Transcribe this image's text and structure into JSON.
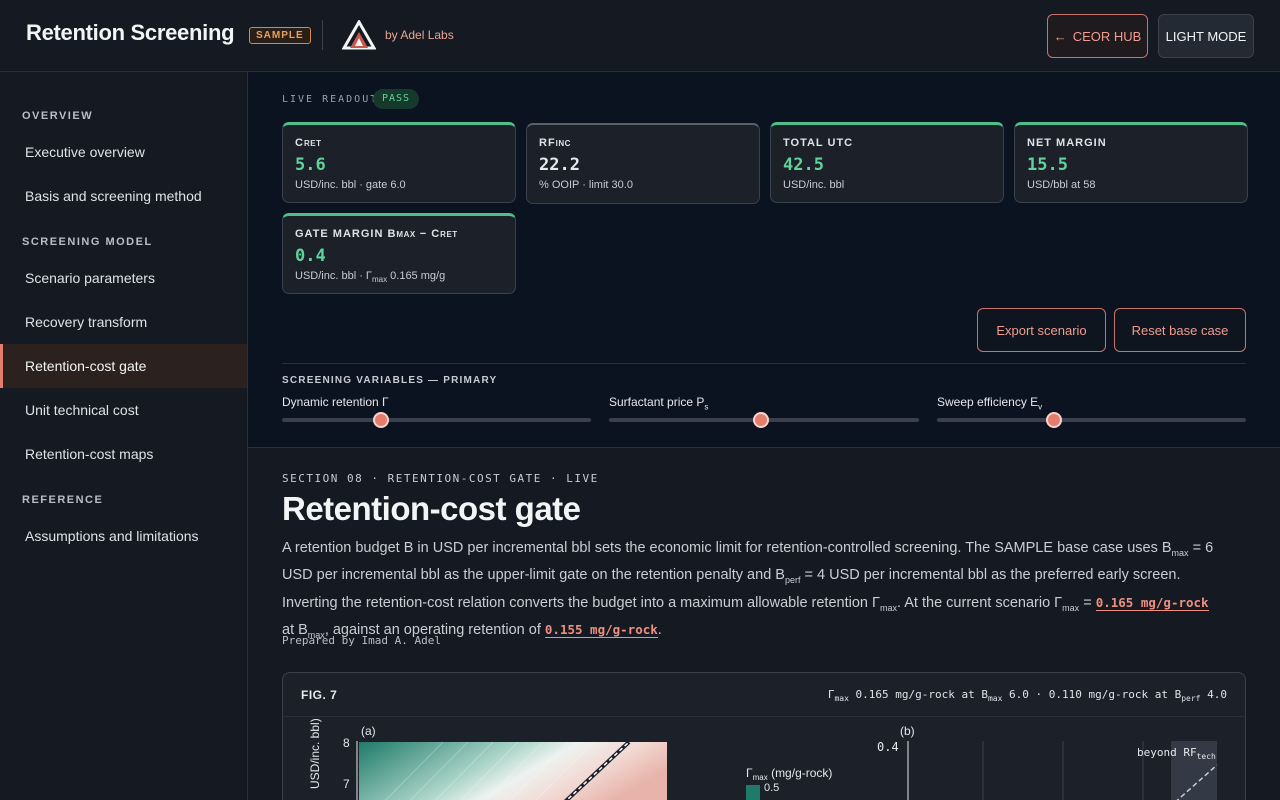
{
  "header": {
    "title": "Retention Screening",
    "badge": "SAMPLE",
    "byline": "by Adel Labs",
    "hub_button": "CEOR HUB",
    "hub_arrow": "←",
    "mode_button": "LIGHT MODE"
  },
  "sidebar": {
    "overview_heading": "OVERVIEW",
    "model_heading": "SCREENING MODEL",
    "reference_heading": "REFERENCE",
    "items": [
      "Executive overview",
      "Basis and screening method",
      "Scenario parameters",
      "Recovery transform",
      "Retention-cost gate",
      "Unit technical cost",
      "Retention-cost maps",
      "Assumptions and limitations"
    ],
    "active_index": 4
  },
  "readout": {
    "label": "LIVE READOUT",
    "status": "PASS",
    "cards": [
      {
        "label": "C",
        "label_sub": "RET",
        "value": "5.6",
        "sub": "USD/inc. bbl · gate 6.0"
      },
      {
        "label": "RF",
        "label_sub": "INC",
        "value": "22.2",
        "sub": "% OOIP · limit 30.0"
      },
      {
        "label": "TOTAL UTC",
        "value": "42.5",
        "sub": "USD/inc. bbl"
      },
      {
        "label": "NET MARGIN",
        "value": "15.5",
        "sub": "USD/bbl at 58"
      },
      {
        "label": "GATE MARGIN B",
        "label_sub": "MAX",
        "label_tail": " − C",
        "label_sub2": "RET",
        "value": "0.4",
        "sub": "USD/inc. bbl · Γ",
        "sub_sub": "max",
        "sub_tail": " 0.165 mg/g"
      }
    ],
    "export_button": "Export scenario",
    "reset_button": "Reset base case"
  },
  "variables": {
    "heading": "SCREENING VARIABLES — PRIMARY",
    "sliders": [
      {
        "label": "Dynamic retention Γ",
        "fraction": 0.32
      },
      {
        "label": "Surfactant price P",
        "label_sub": "s",
        "fraction": 0.49
      },
      {
        "label": "Sweep efficiency E",
        "label_sub": "v",
        "fraction": 0.38
      }
    ]
  },
  "section": {
    "kicker": "SECTION 08 · RETENTION-COST GATE · LIVE",
    "title": "Retention-cost gate",
    "p1": "A retention budget B in USD per incremental bbl sets the economic limit for retention-controlled screening. The SAMPLE base case uses B",
    "p1_sub": "max",
    "p2": " = 6 USD per incremental bbl as the upper-limit gate on the retention penalty and B",
    "p2_sub": "perf",
    "p3": " = 4 USD per incremental bbl as the preferred early screen. Inverting the retention-cost relation converts the budget into a maximum allowable retention Γ",
    "p3_sub": "max",
    "p4": ". At the current scenario Γ",
    "p4_sub": "max",
    "p5": " = ",
    "hl1": "0.165 mg/g-rock",
    "p6": " at B",
    "p6_sub": "max",
    "p7": ", against an operating retention of ",
    "hl2": "0.155 mg/g-rock",
    "p8": ".",
    "prepared": "Prepared by Imad A. Adel"
  },
  "figure": {
    "number": "FIG. 7",
    "note_a": "Γ",
    "note_a_sub": "max",
    "note_b": " 0.165 mg/g-rock at B",
    "note_b_sub": "max",
    "note_c": " 6.0 · 0.110 mg/g-rock at B",
    "note_c_sub": "perf",
    "note_d": " 4.0",
    "panel_a_label": "(a)",
    "panel_b_label": "(b)",
    "ylabel_a": "USD/inc. bbl)",
    "yticks_a": [
      "8",
      "7"
    ],
    "yticks_b": [
      "0.4"
    ],
    "colorbar_title": "Γ",
    "colorbar_title_sub": "max",
    "colorbar_title_tail": " (mg/g-rock)",
    "colorbar_tick": "0.5",
    "beyond_label": "beyond RF",
    "beyond_sub": "tech"
  },
  "colors": {
    "accent": "#e57d6f",
    "pass": "#5fd39a",
    "badge": "#e9a063"
  }
}
